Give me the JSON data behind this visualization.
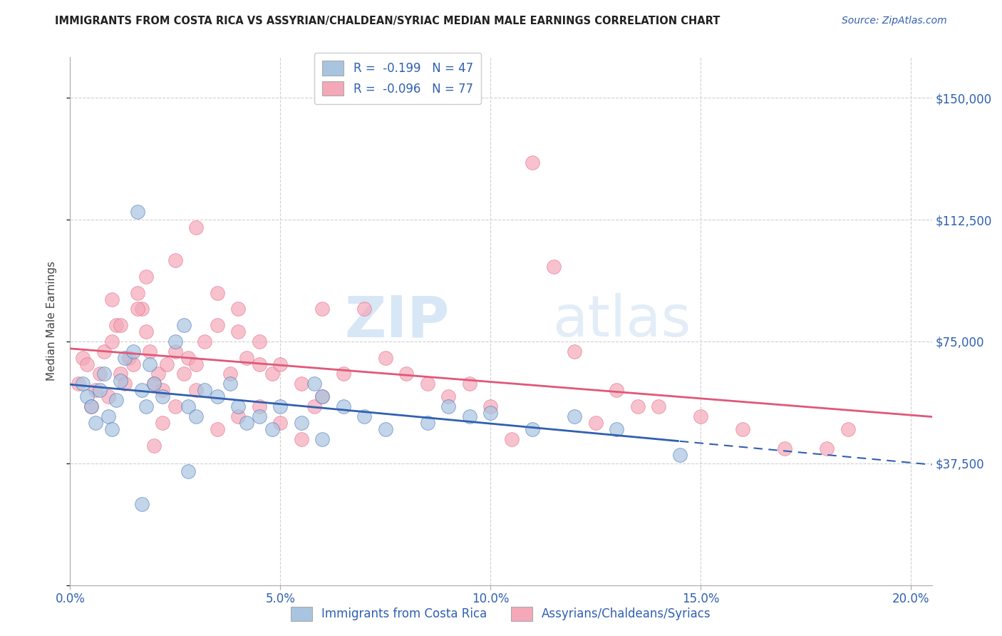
{
  "title": "IMMIGRANTS FROM COSTA RICA VS ASSYRIAN/CHALDEAN/SYRIAC MEDIAN MALE EARNINGS CORRELATION CHART",
  "source": "Source: ZipAtlas.com",
  "ylabel": "Median Male Earnings",
  "xlim": [
    0.0,
    0.205
  ],
  "ylim": [
    0,
    162500
  ],
  "yticks": [
    0,
    37500,
    75000,
    112500,
    150000
  ],
  "ytick_labels": [
    "",
    "$37,500",
    "$75,000",
    "$112,500",
    "$150,000"
  ],
  "xtick_labels": [
    "0.0%",
    "5.0%",
    "10.0%",
    "15.0%",
    "20.0%"
  ],
  "xticks": [
    0.0,
    0.05,
    0.1,
    0.15,
    0.2
  ],
  "legend_r1": "R =  -0.199",
  "legend_n1": "N = 47",
  "legend_r2": "R =  -0.096",
  "legend_n2": "N = 77",
  "blue_color": "#a8c4e0",
  "pink_color": "#f4a8b8",
  "blue_line_color": "#3060b0",
  "pink_line_color": "#e05878",
  "watermark_zip": "ZIP",
  "watermark_atlas": "atlas",
  "grid_color": "#d0d0d0",
  "background_color": "#ffffff",
  "blue_scatter_x": [
    0.003,
    0.004,
    0.005,
    0.006,
    0.007,
    0.008,
    0.009,
    0.01,
    0.011,
    0.012,
    0.013,
    0.015,
    0.016,
    0.017,
    0.018,
    0.019,
    0.02,
    0.022,
    0.025,
    0.027,
    0.028,
    0.03,
    0.032,
    0.035,
    0.038,
    0.04,
    0.042,
    0.045,
    0.048,
    0.05,
    0.055,
    0.058,
    0.06,
    0.065,
    0.07,
    0.075,
    0.085,
    0.09,
    0.095,
    0.1,
    0.11,
    0.12,
    0.13,
    0.145,
    0.06,
    0.028,
    0.017
  ],
  "blue_scatter_y": [
    62000,
    58000,
    55000,
    50000,
    60000,
    65000,
    52000,
    48000,
    57000,
    63000,
    70000,
    72000,
    115000,
    60000,
    55000,
    68000,
    62000,
    58000,
    75000,
    80000,
    55000,
    52000,
    60000,
    58000,
    62000,
    55000,
    50000,
    52000,
    48000,
    55000,
    50000,
    62000,
    58000,
    55000,
    52000,
    48000,
    50000,
    55000,
    52000,
    53000,
    48000,
    52000,
    48000,
    40000,
    45000,
    35000,
    25000
  ],
  "pink_scatter_x": [
    0.002,
    0.003,
    0.004,
    0.005,
    0.006,
    0.007,
    0.008,
    0.009,
    0.01,
    0.011,
    0.012,
    0.013,
    0.014,
    0.015,
    0.016,
    0.017,
    0.018,
    0.019,
    0.02,
    0.021,
    0.022,
    0.023,
    0.025,
    0.027,
    0.028,
    0.03,
    0.032,
    0.035,
    0.038,
    0.04,
    0.042,
    0.045,
    0.048,
    0.05,
    0.055,
    0.058,
    0.06,
    0.065,
    0.07,
    0.075,
    0.08,
    0.085,
    0.09,
    0.095,
    0.1,
    0.105,
    0.11,
    0.115,
    0.12,
    0.125,
    0.13,
    0.135,
    0.14,
    0.15,
    0.16,
    0.17,
    0.018,
    0.025,
    0.03,
    0.035,
    0.04,
    0.045,
    0.01,
    0.012,
    0.016,
    0.02,
    0.022,
    0.025,
    0.03,
    0.035,
    0.04,
    0.045,
    0.05,
    0.055,
    0.06,
    0.18,
    0.185
  ],
  "pink_scatter_y": [
    62000,
    70000,
    68000,
    55000,
    60000,
    65000,
    72000,
    58000,
    75000,
    80000,
    65000,
    62000,
    70000,
    68000,
    90000,
    85000,
    78000,
    72000,
    62000,
    65000,
    60000,
    68000,
    72000,
    65000,
    70000,
    68000,
    75000,
    80000,
    65000,
    78000,
    70000,
    68000,
    65000,
    68000,
    62000,
    55000,
    85000,
    65000,
    85000,
    70000,
    65000,
    62000,
    58000,
    62000,
    55000,
    45000,
    130000,
    98000,
    72000,
    50000,
    60000,
    55000,
    55000,
    52000,
    48000,
    42000,
    95000,
    100000,
    110000,
    90000,
    85000,
    75000,
    88000,
    80000,
    85000,
    43000,
    50000,
    55000,
    60000,
    48000,
    52000,
    55000,
    50000,
    45000,
    58000,
    42000,
    48000
  ]
}
